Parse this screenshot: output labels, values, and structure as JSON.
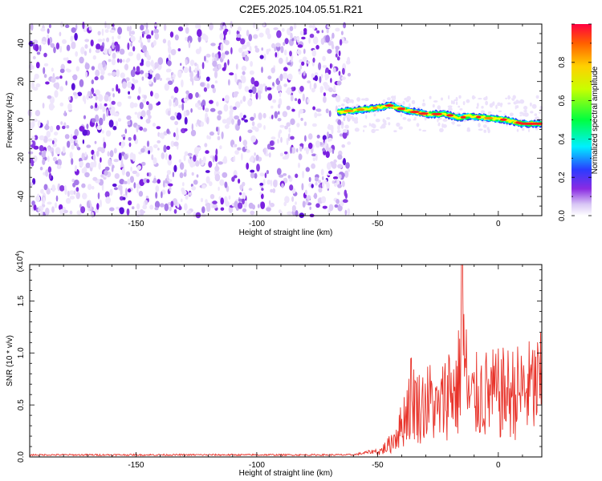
{
  "title": "C2E5.2025.104.05.51.R21",
  "colors": {
    "snr_line": "#e8332a",
    "spectrogram_cmap": [
      "#ffffff",
      "#d9c8f5",
      "#8a2be2",
      "#2040ff",
      "#00ffff",
      "#00ff40",
      "#ffff00",
      "#ff8000",
      "#ff0000"
    ]
  },
  "chart_data": [
    {
      "type": "heatmap",
      "title": "C2E5.2025.104.05.51.R21",
      "xlabel": "Height of straight line (km)",
      "ylabel": "Frequency (Hz)",
      "xlim": [
        -194,
        18
      ],
      "ylim": [
        -50,
        50
      ],
      "x_ticks": [
        "-150",
        "-100",
        "-50",
        "0"
      ],
      "y_ticks": [
        "-40",
        "-20",
        "0",
        "20",
        "40"
      ],
      "colorbar": {
        "label": "Normalized spectral amplitude",
        "range": [
          0,
          1
        ],
        "ticks": [
          "0.0",
          "0.2",
          "0.4",
          "0.6",
          "0.8"
        ]
      },
      "noise_region": {
        "x_range": [
          -194,
          -63
        ],
        "amplitude": "low (0.0-0.2)"
      },
      "signal_ridge": [
        {
          "x": -66,
          "y": 4
        },
        {
          "x": -60,
          "y": 5
        },
        {
          "x": -52,
          "y": 6
        },
        {
          "x": -45,
          "y": 7.5
        },
        {
          "x": -38,
          "y": 5
        },
        {
          "x": -30,
          "y": 3
        },
        {
          "x": -22,
          "y": 3
        },
        {
          "x": -16,
          "y": 1
        },
        {
          "x": -12,
          "y": 2
        },
        {
          "x": -5,
          "y": 1
        },
        {
          "x": 3,
          "y": 0
        },
        {
          "x": 10,
          "y": -2
        },
        {
          "x": 18,
          "y": -2
        }
      ]
    },
    {
      "type": "line",
      "xlabel": "Height of straight line (km)",
      "ylabel": "SNR (10 * v/v)",
      "multiplier": "(x10^4)",
      "xlim": [
        -194,
        18
      ],
      "ylim": [
        0,
        1.85
      ],
      "x_ticks": [
        "-150",
        "-100",
        "-50",
        "0"
      ],
      "y_ticks": [
        "0.0",
        "0.5",
        "1.0",
        "1.5"
      ],
      "series_envelope": [
        {
          "x": -194,
          "y": 0.02
        },
        {
          "x": -60,
          "y": 0.02
        },
        {
          "x": -50,
          "y": 0.06
        },
        {
          "x": -45,
          "y": 0.2
        },
        {
          "x": -40,
          "y": 0.5
        },
        {
          "x": -36,
          "y": 1.0
        },
        {
          "x": -33,
          "y": 0.8
        },
        {
          "x": -28,
          "y": 0.9
        },
        {
          "x": -25,
          "y": 0.7
        },
        {
          "x": -20,
          "y": 1.15
        },
        {
          "x": -17,
          "y": 1.0
        },
        {
          "x": -15,
          "y": 1.85
        },
        {
          "x": -12,
          "y": 0.85
        },
        {
          "x": -8,
          "y": 1.0
        },
        {
          "x": 0,
          "y": 1.0
        },
        {
          "x": 10,
          "y": 1.05
        },
        {
          "x": 18,
          "y": 1.15
        }
      ]
    }
  ]
}
